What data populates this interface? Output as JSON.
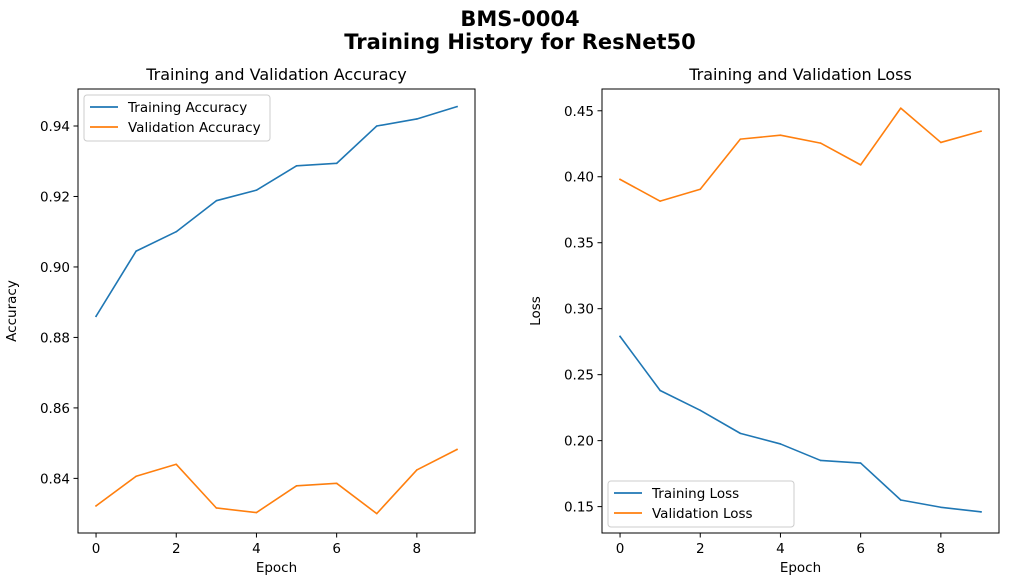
{
  "figure": {
    "suptitle_line1": "BMS-0004",
    "suptitle_line2": "Training History for ResNet50"
  },
  "colors": {
    "training": "#1f77b4",
    "validation": "#ff7f0e"
  },
  "chart_data": [
    {
      "type": "line",
      "title": "Training and Validation Accuracy",
      "xlabel": "Epoch",
      "ylabel": "Accuracy",
      "xlim": [
        -0.45,
        9.45
      ],
      "ylim": [
        0.8245,
        0.9505
      ],
      "x_ticks": [
        0,
        2,
        4,
        6,
        8
      ],
      "y_ticks": [
        0.84,
        0.86,
        0.88,
        0.9,
        0.92,
        0.94
      ],
      "y_tick_labels": [
        "0.84",
        "0.86",
        "0.88",
        "0.90",
        "0.92",
        "0.94"
      ],
      "legend_position": "upper-left",
      "grid": false,
      "x": [
        0,
        1,
        2,
        3,
        4,
        5,
        6,
        7,
        8,
        9
      ],
      "series": [
        {
          "name": "Training Accuracy",
          "color": "#1f77b4",
          "values": [
            0.886,
            0.9045,
            0.91,
            0.9188,
            0.9218,
            0.9287,
            0.9294,
            0.94,
            0.942,
            0.9455
          ]
        },
        {
          "name": "Validation Accuracy",
          "color": "#ff7f0e",
          "values": [
            0.8322,
            0.8406,
            0.844,
            0.8316,
            0.8303,
            0.8379,
            0.8386,
            0.83,
            0.8424,
            0.8482
          ]
        }
      ]
    },
    {
      "type": "line",
      "title": "Training and Validation Loss",
      "xlabel": "Epoch",
      "ylabel": "Loss",
      "xlim": [
        -0.45,
        9.45
      ],
      "ylim": [
        0.13,
        0.4665
      ],
      "x_ticks": [
        0,
        2,
        4,
        6,
        8
      ],
      "y_ticks": [
        0.15,
        0.2,
        0.25,
        0.3,
        0.35,
        0.4,
        0.45
      ],
      "y_tick_labels": [
        "0.15",
        "0.20",
        "0.25",
        "0.30",
        "0.35",
        "0.40",
        "0.45"
      ],
      "legend_position": "lower-left",
      "grid": false,
      "x": [
        0,
        1,
        2,
        3,
        4,
        5,
        6,
        7,
        8,
        9
      ],
      "series": [
        {
          "name": "Training Loss",
          "color": "#1f77b4",
          "values": [
            0.279,
            0.238,
            0.223,
            0.2055,
            0.1975,
            0.185,
            0.183,
            0.155,
            0.1495,
            0.146
          ]
        },
        {
          "name": "Validation Loss",
          "color": "#ff7f0e",
          "values": [
            0.398,
            0.3815,
            0.3905,
            0.4285,
            0.4315,
            0.4255,
            0.409,
            0.452,
            0.426,
            0.4345
          ]
        }
      ]
    }
  ]
}
